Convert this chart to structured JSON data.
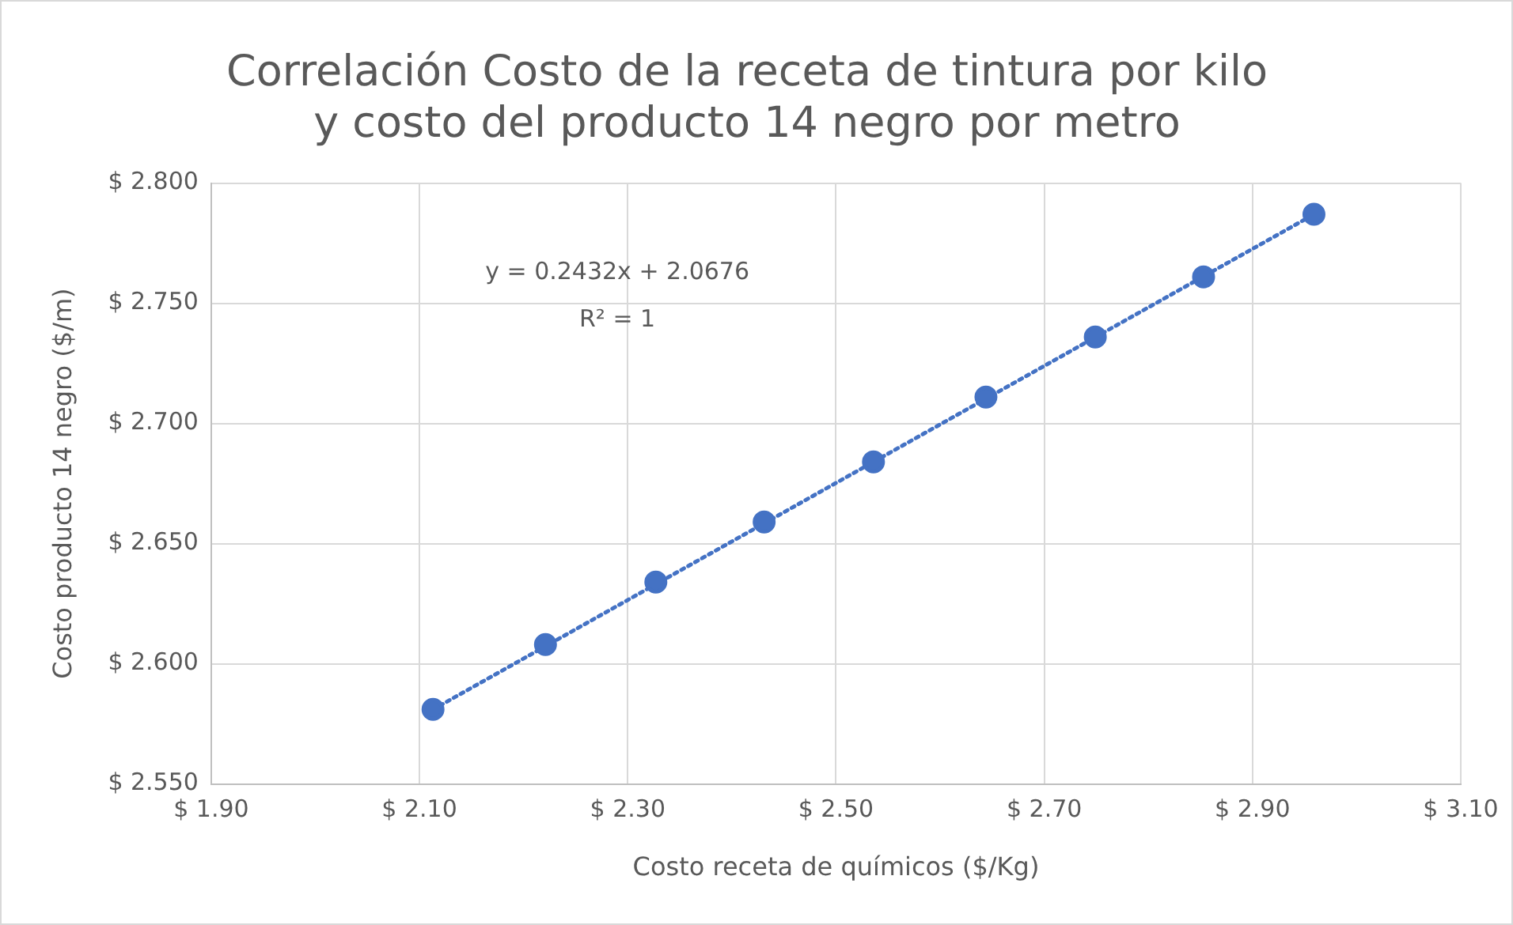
{
  "chart_data": {
    "type": "scatter",
    "title": [
      "Correlación Costo de la receta de tintura por kilo",
      "y costo del producto 14 negro por metro"
    ],
    "xlabel": "Costo receta de químicos ($/Kg)",
    "ylabel": "Costo producto 14 negro ($/m)",
    "series": [
      {
        "type": "scatter",
        "color": "#4472c4",
        "marker": "circle",
        "x": [
          2.113,
          2.221,
          2.327,
          2.431,
          2.536,
          2.644,
          2.749,
          2.853,
          2.959
        ],
        "values": [
          2.581,
          2.608,
          2.634,
          2.659,
          2.684,
          2.711,
          2.736,
          2.761,
          2.787
        ]
      },
      {
        "type": "line",
        "color": "#4472c4",
        "marker": "none",
        "line_style": "dotted",
        "x": [
          2.113,
          2.959
        ],
        "values": [
          2.581,
          2.787
        ]
      }
    ],
    "xlim": [
      1.9,
      3.1
    ],
    "xticks": [
      {
        "value": 1.9,
        "label": "$ 1.90"
      },
      {
        "value": 2.1,
        "label": "$ 2.10"
      },
      {
        "value": 2.3,
        "label": "$ 2.30"
      },
      {
        "value": 2.5,
        "label": "$ 2.50"
      },
      {
        "value": 2.7,
        "label": "$ 2.70"
      },
      {
        "value": 2.9,
        "label": "$ 2.90"
      },
      {
        "value": 3.1,
        "label": "$ 3.10"
      }
    ],
    "ylim": [
      2.55,
      2.8
    ],
    "yticks": [
      {
        "value": 2.55,
        "label": "$ 2.550"
      },
      {
        "value": 2.6,
        "label": "$ 2.600"
      },
      {
        "value": 2.65,
        "label": "$ 2.650"
      },
      {
        "value": 2.7,
        "label": "$ 2.700"
      },
      {
        "value": 2.75,
        "label": "$ 2.750"
      },
      {
        "value": 2.8,
        "label": "$ 2.800"
      }
    ],
    "annotations": [
      "y = 0.2432x + 2.0676",
      "R² = 1"
    ],
    "grid": true,
    "legend": false
  }
}
